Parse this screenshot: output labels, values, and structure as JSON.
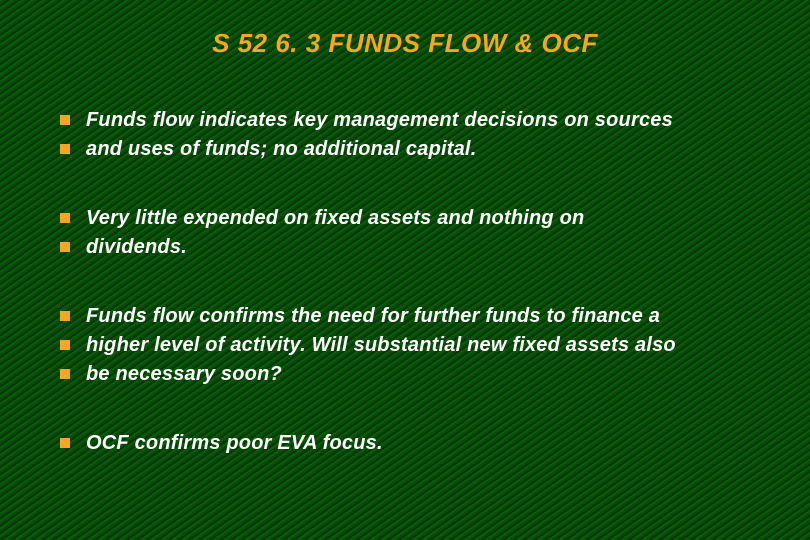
{
  "title": "S 52  6. 3  FUNDS FLOW & OCF",
  "colors": {
    "title_color": "#f5a623",
    "text_color": "#ffffff",
    "bullet_color": "#f5a623",
    "background_base": "#0a5c0a"
  },
  "typography": {
    "title_fontsize": 26,
    "body_fontsize": 20,
    "font_family": "Century Gothic",
    "font_style": "italic",
    "font_weight": "bold"
  },
  "bullet_groups": [
    {
      "lines": [
        "Funds flow indicates key management decisions on sources",
        "and uses  of funds; no additional capital."
      ]
    },
    {
      "lines": [
        "Very little expended on fixed assets and  nothing on",
        "dividends."
      ]
    },
    {
      "lines": [
        "Funds flow confirms the need for further funds to finance a",
        "higher level of activity. Will substantial new fixed assets also",
        "be necessary soon?"
      ]
    },
    {
      "lines": [
        "OCF  confirms poor EVA focus."
      ]
    }
  ]
}
